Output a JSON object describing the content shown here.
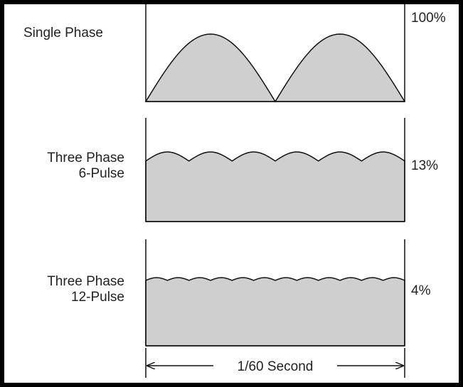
{
  "colors": {
    "frame": "#000000",
    "panel": "#ffffff",
    "wave_fill": "#cfcfcf",
    "stroke": "#111111",
    "text": "#222222"
  },
  "panels": [
    {
      "label_line1": "Single Phase",
      "label_line2": "",
      "ripple_label": "100%",
      "pulses": 2,
      "ripple_fraction": 1.0
    },
    {
      "label_line1": "Three Phase",
      "label_line2": "6-Pulse",
      "ripple_label": "13%",
      "pulses": 6,
      "ripple_fraction": 0.13
    },
    {
      "label_line1": "Three Phase",
      "label_line2": "12-Pulse",
      "ripple_label": "4%",
      "pulses": 12,
      "ripple_fraction": 0.04
    }
  ],
  "time_axis": {
    "label": "1/60 Second"
  }
}
